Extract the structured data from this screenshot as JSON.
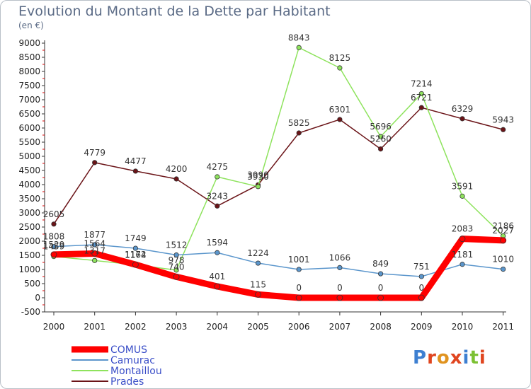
{
  "page": {
    "title": "Evolution du Montant de la Dette par Habitant",
    "subtitle": "(en €)",
    "brand": "Proxiti"
  },
  "chart_data": {
    "type": "line",
    "x": [
      "2000",
      "2001",
      "2002",
      "2003",
      "2004",
      "2005",
      "2006",
      "2007",
      "2008",
      "2009",
      "2010",
      "2011"
    ],
    "ylim": [
      -500,
      9000
    ],
    "yticks": [
      -500,
      0,
      500,
      1000,
      1500,
      2000,
      2500,
      3000,
      3500,
      4000,
      4500,
      5000,
      5500,
      6000,
      6500,
      7000,
      7500,
      8000,
      8500,
      9000
    ],
    "grid": false,
    "legend_position": "bottom-left",
    "series": [
      {
        "name": "Prades",
        "color": "#6b1418",
        "values": [
          2605,
          4779,
          4477,
          4200,
          3243,
          3990,
          5825,
          6301,
          5260,
          6721,
          6329,
          5943
        ]
      },
      {
        "name": "Montaillou",
        "color": "#8ee35d",
        "values": [
          1459,
          1317,
          1164,
          978,
          4275,
          3930,
          8843,
          8125,
          5696,
          7214,
          3591,
          2186
        ]
      },
      {
        "name": "Camurac",
        "color": "#5b96cc",
        "values": [
          1808,
          1877,
          1749,
          1512,
          1594,
          1224,
          1001,
          1066,
          849,
          751,
          1181,
          1010
        ]
      },
      {
        "name": "COMUS",
        "color": "#ff0000",
        "values": [
          1529,
          1564,
          1172,
          740,
          401,
          115,
          0,
          0,
          0,
          0,
          2083,
          2027
        ]
      }
    ]
  }
}
